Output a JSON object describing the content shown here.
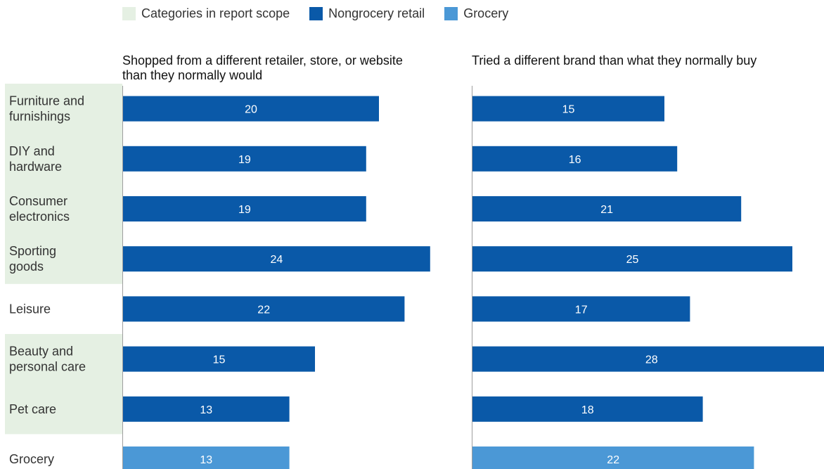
{
  "legend": [
    {
      "label": "Categories in report scope",
      "color": "#e5f0e3"
    },
    {
      "label": "Nongrocery retail",
      "color": "#0a59a8"
    },
    {
      "label": "Grocery",
      "color": "#4b98d6"
    }
  ],
  "colors": {
    "scope_band": "#e5f0e3",
    "nongrocery": "#0a59a8",
    "grocery": "#4b98d6",
    "axis": "#9e9e9e"
  },
  "chart_data": {
    "type": "bar",
    "orientation": "horizontal",
    "categories": [
      {
        "lines": [
          "Furniture and",
          "furnishings"
        ],
        "in_scope": true,
        "group": "Nongrocery retail"
      },
      {
        "lines": [
          "DIY and",
          "hardware"
        ],
        "in_scope": true,
        "group": "Nongrocery retail"
      },
      {
        "lines": [
          "Consumer",
          "electronics"
        ],
        "in_scope": true,
        "group": "Nongrocery retail"
      },
      {
        "lines": [
          "Sporting",
          "goods"
        ],
        "in_scope": true,
        "group": "Nongrocery retail"
      },
      {
        "lines": [
          "Leisure"
        ],
        "in_scope": false,
        "group": "Nongrocery retail"
      },
      {
        "lines": [
          "Beauty and",
          "personal care"
        ],
        "in_scope": true,
        "group": "Nongrocery retail"
      },
      {
        "lines": [
          "Pet care"
        ],
        "in_scope": true,
        "group": "Nongrocery retail"
      },
      {
        "lines": [
          "Grocery"
        ],
        "in_scope": false,
        "group": "Grocery"
      }
    ],
    "panels": [
      {
        "title": "Shopped from a different retailer, store, or website than they normally would",
        "values": [
          20,
          19,
          19,
          24,
          22,
          15,
          13,
          13
        ]
      },
      {
        "title": "Tried a different brand than what they normally buy",
        "values": [
          15,
          16,
          21,
          25,
          17,
          28,
          18,
          22
        ]
      }
    ],
    "xlim": [
      0,
      28
    ]
  }
}
